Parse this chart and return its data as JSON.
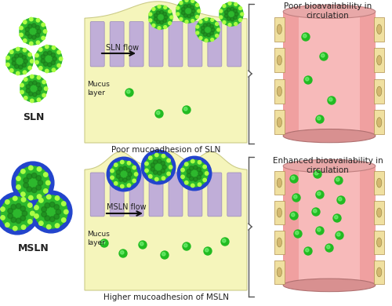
{
  "bg_color": "#ffffff",
  "sln_green": "#2db82d",
  "sln_dark_green": "#1a7a1a",
  "sln_light_green": "#aaff44",
  "msln_blue": "#2244cc",
  "mucus_fill": "#f5f5bb",
  "mucus_edge": "#cccc88",
  "epi_pink": "#f0b898",
  "villi_purple": "#c0aed8",
  "villi_edge": "#9988bb",
  "vessel_main": "#f0a0a0",
  "vessel_light": "#fdd0d0",
  "vessel_panel": "#f0e0a0",
  "vessel_oval": "#d4b870",
  "bracket_color": "#555555",
  "arrow_color": "#111111",
  "text_color": "#222222",
  "particle_green": "#22bb22",
  "particle_dark": "#115511",
  "label_sln": "SLN",
  "label_msln": "MSLN",
  "label_sln_flow": "SLN flow",
  "label_msln_flow": "MSLN flow",
  "label_mucus": "Mucus\nlayer",
  "label_poor_adh": "Poor mucoadhesion of SLN",
  "label_high_adh": "Higher mucoadhesion of MSLN",
  "label_poor_bio": "Poor bioavailability in\ncirculation",
  "label_enhanced_bio": "Enhanced bioavailability in\ncirculation"
}
